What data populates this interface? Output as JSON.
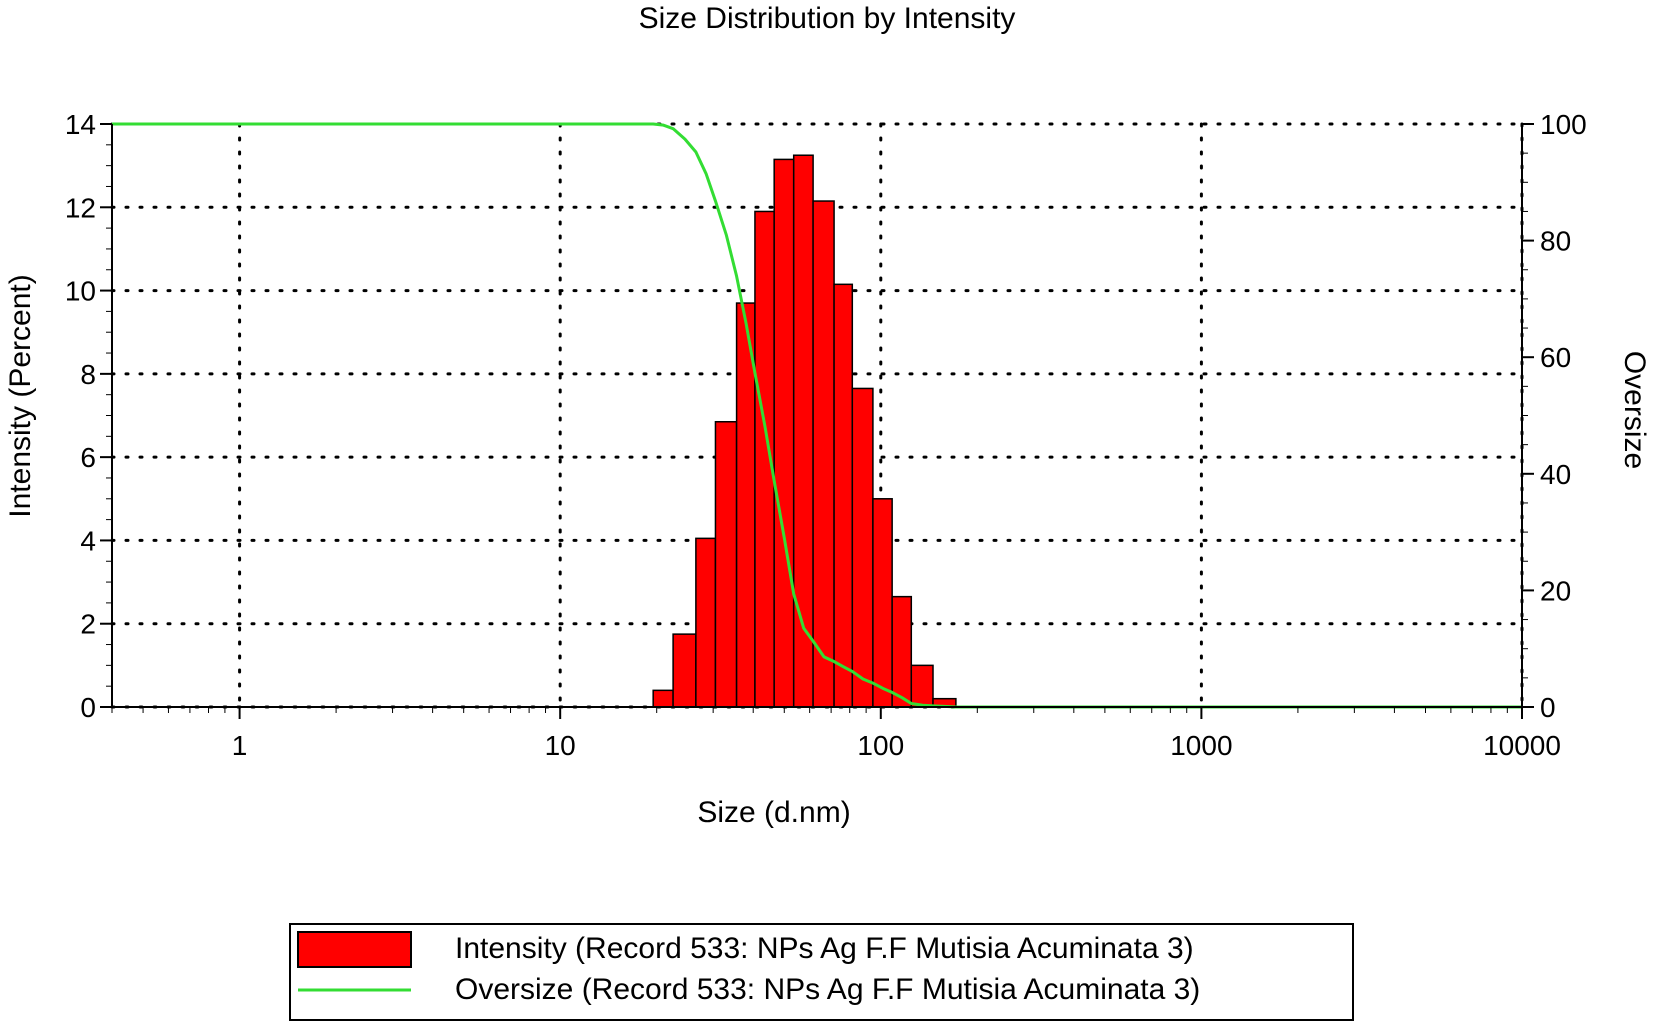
{
  "chart_data": {
    "type": "bar",
    "title": "Size Distribution by Intensity",
    "xlabel": "Size (d.nm)",
    "ylabel": "Intensity (Percent)",
    "y2label": "Oversize",
    "x_scale": "log",
    "xlim": [
      0.4,
      10000
    ],
    "ylim": [
      0,
      14
    ],
    "y2lim": [
      0,
      100
    ],
    "x_ticks": [
      1,
      10,
      100,
      1000,
      10000
    ],
    "x_tick_labels": [
      "1",
      "10",
      "100",
      "1000",
      "10000"
    ],
    "y_ticks": [
      0,
      2,
      4,
      6,
      8,
      10,
      12,
      14
    ],
    "y_tick_labels": [
      "0",
      "2",
      "4",
      "6",
      "8",
      "10",
      "12",
      "14"
    ],
    "y2_ticks": [
      0,
      20,
      40,
      60,
      80,
      100
    ],
    "y2_tick_labels": [
      "0",
      "20",
      "40",
      "60",
      "80",
      "100"
    ],
    "grid": true,
    "legend_position": "bottom-center",
    "colors": {
      "bars": "#ff0000",
      "bar_edge": "#000000",
      "line": "#33dd33"
    },
    "series": [
      {
        "name": "Intensity (Record 533: NPs Ag F.F Mutisia Acuminata 3)",
        "type": "bar",
        "axis": "left",
        "bins": [
          {
            "left": 19.5,
            "right": 22.5,
            "value": 0.4
          },
          {
            "left": 22.5,
            "right": 26.5,
            "value": 1.75
          },
          {
            "left": 26.5,
            "right": 30.5,
            "value": 4.05
          },
          {
            "left": 30.5,
            "right": 35.5,
            "value": 6.85
          },
          {
            "left": 35.5,
            "right": 40.5,
            "value": 9.7
          },
          {
            "left": 40.5,
            "right": 46.5,
            "value": 11.9
          },
          {
            "left": 46.5,
            "right": 53.5,
            "value": 13.15
          },
          {
            "left": 53.5,
            "right": 61.5,
            "value": 13.25
          },
          {
            "left": 61.5,
            "right": 71.5,
            "value": 12.15
          },
          {
            "left": 71.5,
            "right": 81.5,
            "value": 10.15
          },
          {
            "left": 81.5,
            "right": 94.5,
            "value": 7.65
          },
          {
            "left": 94.5,
            "right": 108.5,
            "value": 5.0
          },
          {
            "left": 108.5,
            "right": 124.5,
            "value": 2.65
          },
          {
            "left": 124.5,
            "right": 145.5,
            "value": 1.0
          },
          {
            "left": 145.5,
            "right": 171.5,
            "value": 0.2
          }
        ]
      },
      {
        "name": "Oversize (Record 533: NPs Ag F.F Mutisia Acuminata 3)",
        "type": "line",
        "axis": "right",
        "x": [
          0.4,
          10,
          19.5,
          21,
          22.5,
          24.5,
          26.5,
          28.5,
          30.5,
          33,
          35.5,
          38,
          40.5,
          43.5,
          46.5,
          50,
          53.5,
          57.5,
          61.5,
          66.5,
          71.5,
          76.5,
          81.5,
          88,
          94.5,
          101.5,
          108.5,
          116.5,
          124.5,
          135,
          145.5,
          158,
          171.5,
          200,
          1000,
          10000
        ],
        "y": [
          100,
          100,
          100,
          99.8,
          99.2,
          97.4,
          95.2,
          91.5,
          86.8,
          80.9,
          73.9,
          65.8,
          57.3,
          48.2,
          38.8,
          29.0,
          19.4,
          13.5,
          11.3,
          8.6,
          7.8,
          6.9,
          6.1,
          4.8,
          4.1,
          3.2,
          2.5,
          1.6,
          0.6,
          0.3,
          0.2,
          0.1,
          0.0,
          0,
          0,
          0
        ]
      }
    ]
  }
}
